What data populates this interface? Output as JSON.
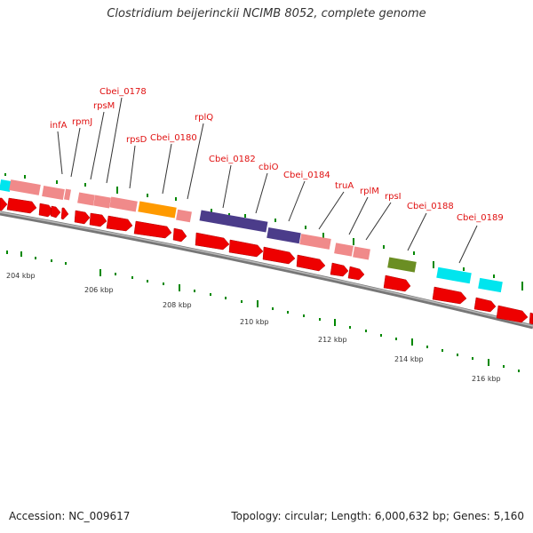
{
  "title": "Clostridium beijerinckii NCIMB 8052, complete genome",
  "footer": {
    "accession": "Accession: NC_009617",
    "summary": "Topology: circular; Length: 6,000,632 bp; Genes: 5,160"
  },
  "scale_labels": [
    "204 kbp",
    "206 kbp",
    "208 kbp",
    "210 kbp",
    "212 kbp",
    "214 kbp",
    "216 kbp"
  ],
  "genes": [
    {
      "name": "infA",
      "color": "#f08a8a"
    },
    {
      "name": "rpmJ",
      "color": "#f08a8a"
    },
    {
      "name": "rpsM",
      "color": "#f08a8a"
    },
    {
      "name": "Cbei_0178",
      "color": "#f08a8a"
    },
    {
      "name": "rpsD",
      "color": "#f08a8a"
    },
    {
      "name": "Cbei_0180",
      "color": "#ff9a00"
    },
    {
      "name": "rplQ",
      "color": "#f08a8a"
    },
    {
      "name": "Cbei_0182",
      "color": "#4b3c8a"
    },
    {
      "name": "cbiO",
      "color": "#4b3c8a"
    },
    {
      "name": "Cbei_0184",
      "color": "#f08a8a"
    },
    {
      "name": "truA",
      "color": "#f08a8a"
    },
    {
      "name": "rplM",
      "color": "#f08a8a"
    },
    {
      "name": "rpsI",
      "color": "#f08a8a"
    },
    {
      "name": "Cbei_0188",
      "color": "#6b8e23"
    },
    {
      "name": "Cbei_0189",
      "color": "#00e5ee"
    }
  ],
  "colors": {
    "backbone": "#888888",
    "cds_arrow": "#ee0000",
    "gene_label": "#e01010",
    "tick": "#008800",
    "left_edge_gene": "#00e5ee"
  }
}
